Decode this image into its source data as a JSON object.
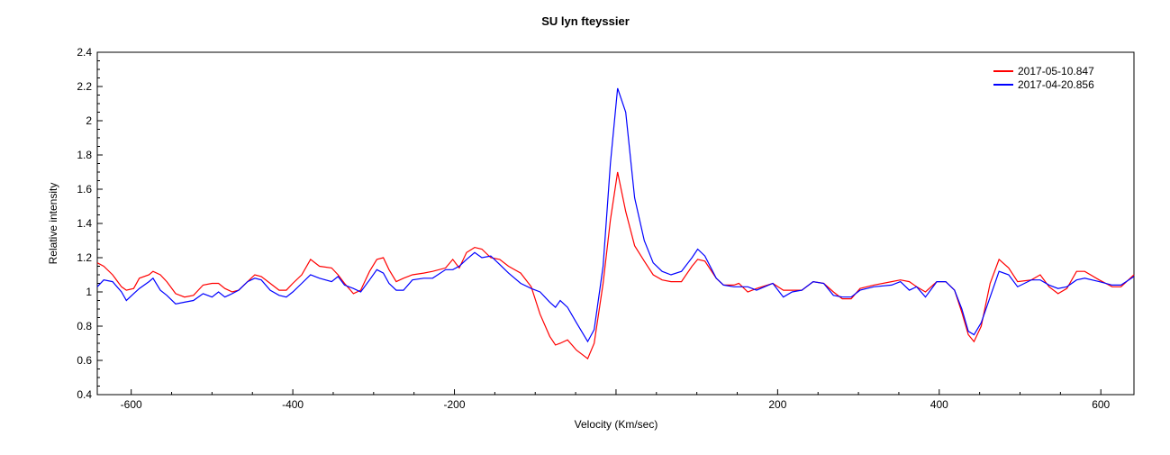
{
  "chart_data": {
    "type": "line",
    "title": "SU lyn  fteyssier",
    "xlabel": "Velocity (Km/sec)",
    "ylabel": "Relative intensity",
    "xlim": [
      -642,
      641
    ],
    "ylim": [
      0.4,
      2.4
    ],
    "xticks": [
      -600,
      -400,
      -200,
      200,
      400,
      600
    ],
    "xtick_labels": [
      "-600",
      "-400",
      "-200",
      "200",
      "400",
      "600"
    ],
    "yticks": [
      0.4,
      0.6,
      0.8,
      1,
      1.2,
      1.4,
      1.6,
      1.8,
      2,
      2.2,
      2.4
    ],
    "ytick_labels": [
      "0.4",
      "0.6",
      "0.8",
      "1",
      "1.2",
      "1.4",
      "1.6",
      "1.8",
      "2",
      "2.2",
      "2.4"
    ],
    "legend_position": "top-right",
    "x": [
      -642,
      -634,
      -623,
      -612,
      -606,
      -597,
      -590,
      -578,
      -573,
      -564,
      -556,
      -545,
      -534,
      -523,
      -511,
      -500,
      -492,
      -484,
      -475,
      -467,
      -456,
      -447,
      -439,
      -428,
      -417,
      -408,
      -400,
      -389,
      -378,
      -367,
      -352,
      -344,
      -336,
      -325,
      -316,
      -305,
      -296,
      -288,
      -281,
      -272,
      -263,
      -252,
      -238,
      -227,
      -211,
      -202,
      -194,
      -185,
      -175,
      -166,
      -155,
      -144,
      -133,
      -118,
      -105,
      -94,
      -82,
      -75,
      -69,
      -60,
      -49,
      -35,
      -27,
      -16,
      -7,
      2,
      12,
      23,
      35,
      46,
      57,
      68,
      81,
      94,
      101,
      110,
      124,
      133,
      146,
      152,
      163,
      174,
      194,
      207,
      218,
      230,
      244,
      257,
      269,
      280,
      291,
      302,
      319,
      341,
      352,
      363,
      372,
      383,
      397,
      408,
      419,
      428,
      436,
      443,
      452,
      463,
      474,
      486,
      497,
      514,
      525,
      536,
      547,
      558,
      570,
      580,
      598,
      614,
      625,
      641
    ],
    "series": [
      {
        "name": "2017-05-10.847",
        "color": "#ff0000",
        "values": [
          1.17,
          1.15,
          1.1,
          1.03,
          1.01,
          1.02,
          1.08,
          1.1,
          1.12,
          1.1,
          1.06,
          0.99,
          0.97,
          0.98,
          1.04,
          1.05,
          1.05,
          1.02,
          1.0,
          1.01,
          1.06,
          1.1,
          1.09,
          1.05,
          1.01,
          1.01,
          1.05,
          1.1,
          1.19,
          1.15,
          1.14,
          1.1,
          1.05,
          0.99,
          1.01,
          1.12,
          1.19,
          1.2,
          1.13,
          1.06,
          1.08,
          1.1,
          1.11,
          1.12,
          1.14,
          1.19,
          1.14,
          1.23,
          1.26,
          1.25,
          1.2,
          1.19,
          1.15,
          1.11,
          1.03,
          0.87,
          0.74,
          0.69,
          0.7,
          0.72,
          0.66,
          0.61,
          0.7,
          1.05,
          1.42,
          1.7,
          1.47,
          1.27,
          1.18,
          1.1,
          1.07,
          1.06,
          1.06,
          1.15,
          1.19,
          1.18,
          1.08,
          1.04,
          1.04,
          1.05,
          1.0,
          1.02,
          1.05,
          1.01,
          1.01,
          1.01,
          1.06,
          1.05,
          1.0,
          0.96,
          0.96,
          1.02,
          1.04,
          1.06,
          1.07,
          1.06,
          1.03,
          1.0,
          1.06,
          1.06,
          1.01,
          0.88,
          0.75,
          0.71,
          0.8,
          1.05,
          1.19,
          1.14,
          1.06,
          1.07,
          1.1,
          1.03,
          0.99,
          1.02,
          1.12,
          1.12,
          1.07,
          1.03,
          1.03,
          1.1
        ]
      },
      {
        "name": "2017-04-20.856",
        "color": "#0000ff",
        "values": [
          1.03,
          1.07,
          1.06,
          1.0,
          0.95,
          0.99,
          1.02,
          1.06,
          1.08,
          1.01,
          0.98,
          0.93,
          0.94,
          0.95,
          0.99,
          0.97,
          1.0,
          0.97,
          0.99,
          1.01,
          1.06,
          1.08,
          1.07,
          1.01,
          0.98,
          0.97,
          1.0,
          1.05,
          1.1,
          1.08,
          1.06,
          1.09,
          1.04,
          1.02,
          1.0,
          1.07,
          1.13,
          1.11,
          1.05,
          1.01,
          1.01,
          1.07,
          1.08,
          1.08,
          1.13,
          1.13,
          1.15,
          1.19,
          1.23,
          1.2,
          1.21,
          1.16,
          1.11,
          1.05,
          1.02,
          1.0,
          0.94,
          0.91,
          0.95,
          0.91,
          0.82,
          0.71,
          0.78,
          1.15,
          1.75,
          2.19,
          2.05,
          1.55,
          1.3,
          1.17,
          1.12,
          1.1,
          1.12,
          1.2,
          1.25,
          1.21,
          1.08,
          1.04,
          1.03,
          1.03,
          1.03,
          1.01,
          1.05,
          0.97,
          1.0,
          1.01,
          1.06,
          1.05,
          0.98,
          0.97,
          0.97,
          1.01,
          1.03,
          1.04,
          1.06,
          1.01,
          1.03,
          0.97,
          1.06,
          1.06,
          1.01,
          0.9,
          0.77,
          0.75,
          0.82,
          0.97,
          1.12,
          1.1,
          1.03,
          1.07,
          1.07,
          1.04,
          1.02,
          1.03,
          1.07,
          1.08,
          1.06,
          1.04,
          1.04,
          1.09
        ]
      }
    ]
  }
}
